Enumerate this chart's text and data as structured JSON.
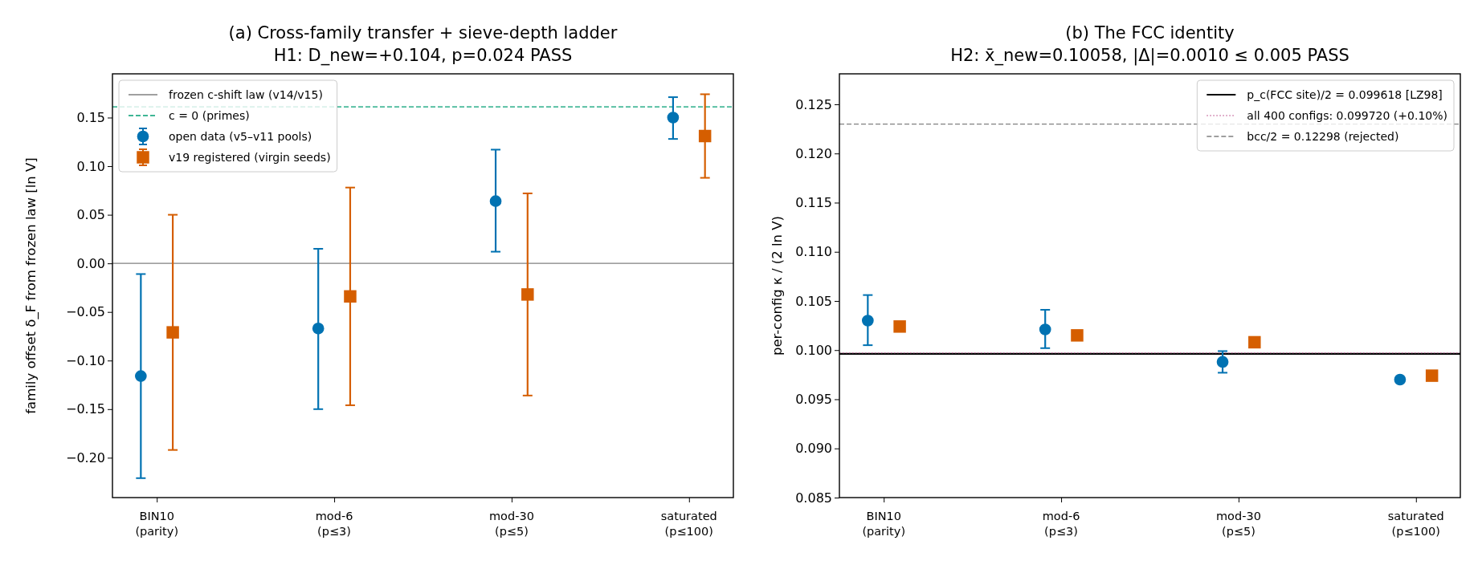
{
  "chart_data": [
    {
      "type": "scatter",
      "title": "(a) Cross-family transfer + sieve-depth ladder",
      "subtitle": "H1: D_new=+0.104, p=0.024 PASS",
      "ylabel": "family offset δ_F from frozen law  [ln V]",
      "categories": [
        "BIN10\n(parity)",
        "mod-6\n(p≤3)",
        "mod-30\n(p≤5)",
        "saturated\n(p≤100)"
      ],
      "ylim": [
        -0.241,
        0.195
      ],
      "yticks": [
        {
          "value": -0.2,
          "label": "−0.20"
        },
        {
          "value": -0.15,
          "label": "−0.15"
        },
        {
          "value": -0.1,
          "label": "−0.10"
        },
        {
          "value": -0.05,
          "label": "−0.05"
        },
        {
          "value": 0,
          "label": "0.00"
        },
        {
          "value": 0.05,
          "label": "0.05"
        },
        {
          "value": 0.1,
          "label": "0.10"
        },
        {
          "value": 0.15,
          "label": "0.15"
        }
      ],
      "legend": "top left",
      "ref_lines": [
        {
          "axis": "y",
          "value": 0,
          "label": "frozen c-shift law (v14/v15)",
          "color": "#808080",
          "line_style": "solid"
        },
        {
          "axis": "y",
          "value": 0.161,
          "label": "c = 0 (primes)",
          "color": "#009e73",
          "line_style": "dashed"
        }
      ],
      "series": [
        {
          "name": "open data (v5–v11 pools)",
          "color": "#0072b2",
          "marker": "circle",
          "values": [
            -0.116,
            -0.067,
            0.064,
            0.15
          ],
          "errors": [
            [
              -0.221,
              -0.011
            ],
            [
              -0.15,
              0.015
            ],
            [
              0.012,
              0.117
            ],
            [
              0.128,
              0.171
            ]
          ]
        },
        {
          "name": "v19 registered (virgin seeds)",
          "color": "#d55e00",
          "marker": "square",
          "values": [
            -0.071,
            -0.034,
            -0.032,
            0.131
          ],
          "errors": [
            [
              -0.192,
              0.05
            ],
            [
              -0.146,
              0.078
            ],
            [
              -0.136,
              0.072
            ],
            [
              0.088,
              0.174
            ]
          ]
        }
      ]
    },
    {
      "type": "scatter",
      "title": "(b) The FCC identity",
      "subtitle": "H2: x̄_new=0.10058, |Δ|=0.0010 ≤ 0.005 PASS",
      "ylabel": "per-config  κ / (2 ln V)",
      "categories": [
        "BIN10\n(parity)",
        "mod-6\n(p≤3)",
        "mod-30\n(p≤5)",
        "saturated\n(p≤100)"
      ],
      "ylim": [
        0.085,
        0.1281
      ],
      "yticks": [
        {
          "value": 0.085,
          "label": "0.085"
        },
        {
          "value": 0.09,
          "label": "0.090"
        },
        {
          "value": 0.095,
          "label": "0.095"
        },
        {
          "value": 0.1,
          "label": "0.100"
        },
        {
          "value": 0.105,
          "label": "0.105"
        },
        {
          "value": 0.11,
          "label": "0.110"
        },
        {
          "value": 0.115,
          "label": "0.115"
        },
        {
          "value": 0.12,
          "label": "0.120"
        },
        {
          "value": 0.125,
          "label": "0.125"
        }
      ],
      "legend": "top right",
      "ref_lines": [
        {
          "axis": "y",
          "value": 0.099618,
          "label": "p_c(FCC site)/2 = 0.099618  [LZ98]",
          "color": "#000000",
          "line_style": "solid"
        },
        {
          "axis": "y",
          "value": 0.09972,
          "label": "all 400 configs: 0.099720 (+0.10%)",
          "color": "#cc79a7",
          "line_style": "dotted"
        },
        {
          "axis": "y",
          "value": 0.12298,
          "label": "bcc/2 = 0.12298 (rejected)",
          "color": "#808080",
          "line_style": "dashed"
        }
      ],
      "series": [
        {
          "color": "#0072b2",
          "marker": "circle",
          "values": [
            0.103,
            0.1021,
            0.0988,
            0.097
          ],
          "errors": [
            [
              0.1005,
              0.1056
            ],
            [
              0.1002,
              0.1041
            ],
            [
              0.0977,
              0.0999
            ],
            null
          ]
        },
        {
          "color": "#d55e00",
          "marker": "square",
          "values": [
            0.1024,
            0.1015,
            0.1008,
            0.0974
          ]
        }
      ]
    }
  ]
}
